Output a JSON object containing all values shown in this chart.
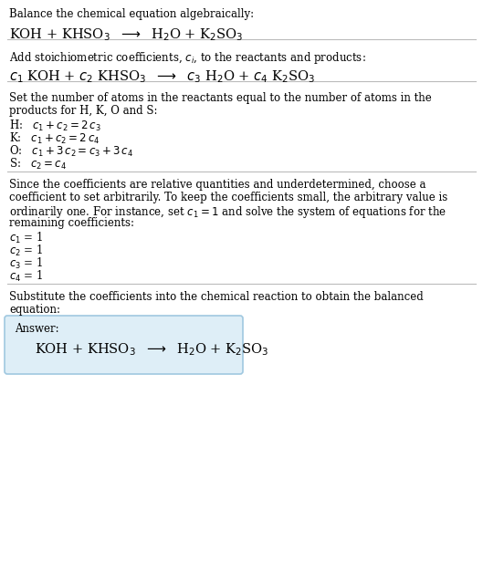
{
  "bg_color": "#ffffff",
  "text_color": "#000000",
  "box_color": "#deeef7",
  "box_border_color": "#a0c8e0",
  "section1_title": "Balance the chemical equation algebraically:",
  "section1_eq": "KOH + KHSO$_3$  $\\longrightarrow$  H$_2$O + K$_2$SO$_3$",
  "section2_title": "Add stoichiometric coefficients, $c_i$, to the reactants and products:",
  "section2_eq": "$c_1$ KOH + $c_2$ KHSO$_3$  $\\longrightarrow$  $c_3$ H$_2$O + $c_4$ K$_2$SO$_3$",
  "section3_title_l1": "Set the number of atoms in the reactants equal to the number of atoms in the",
  "section3_title_l2": "products for H, K, O and S:",
  "section3_lines": [
    "H:   $c_1 + c_2 = 2\\,c_3$",
    "K:   $c_1 + c_2 = 2\\,c_4$",
    "O:   $c_1 + 3\\,c_2 = c_3 + 3\\,c_4$",
    "S:   $c_2 = c_4$"
  ],
  "section4_title_l1": "Since the coefficients are relative quantities and underdetermined, choose a",
  "section4_title_l2": "coefficient to set arbitrarily. To keep the coefficients small, the arbitrary value is",
  "section4_title_l3": "ordinarily one. For instance, set $c_1 = 1$ and solve the system of equations for the",
  "section4_title_l4": "remaining coefficients:",
  "section4_lines": [
    "$c_1$ = 1",
    "$c_2$ = 1",
    "$c_3$ = 1",
    "$c_4$ = 1"
  ],
  "section5_title_l1": "Substitute the coefficients into the chemical reaction to obtain the balanced",
  "section5_title_l2": "equation:",
  "answer_label": "Answer:",
  "answer_eq": "KOH + KHSO$_3$  $\\longrightarrow$  H$_2$O + K$_2$SO$_3$",
  "figsize": [
    5.29,
    6.27
  ],
  "dpi": 100
}
